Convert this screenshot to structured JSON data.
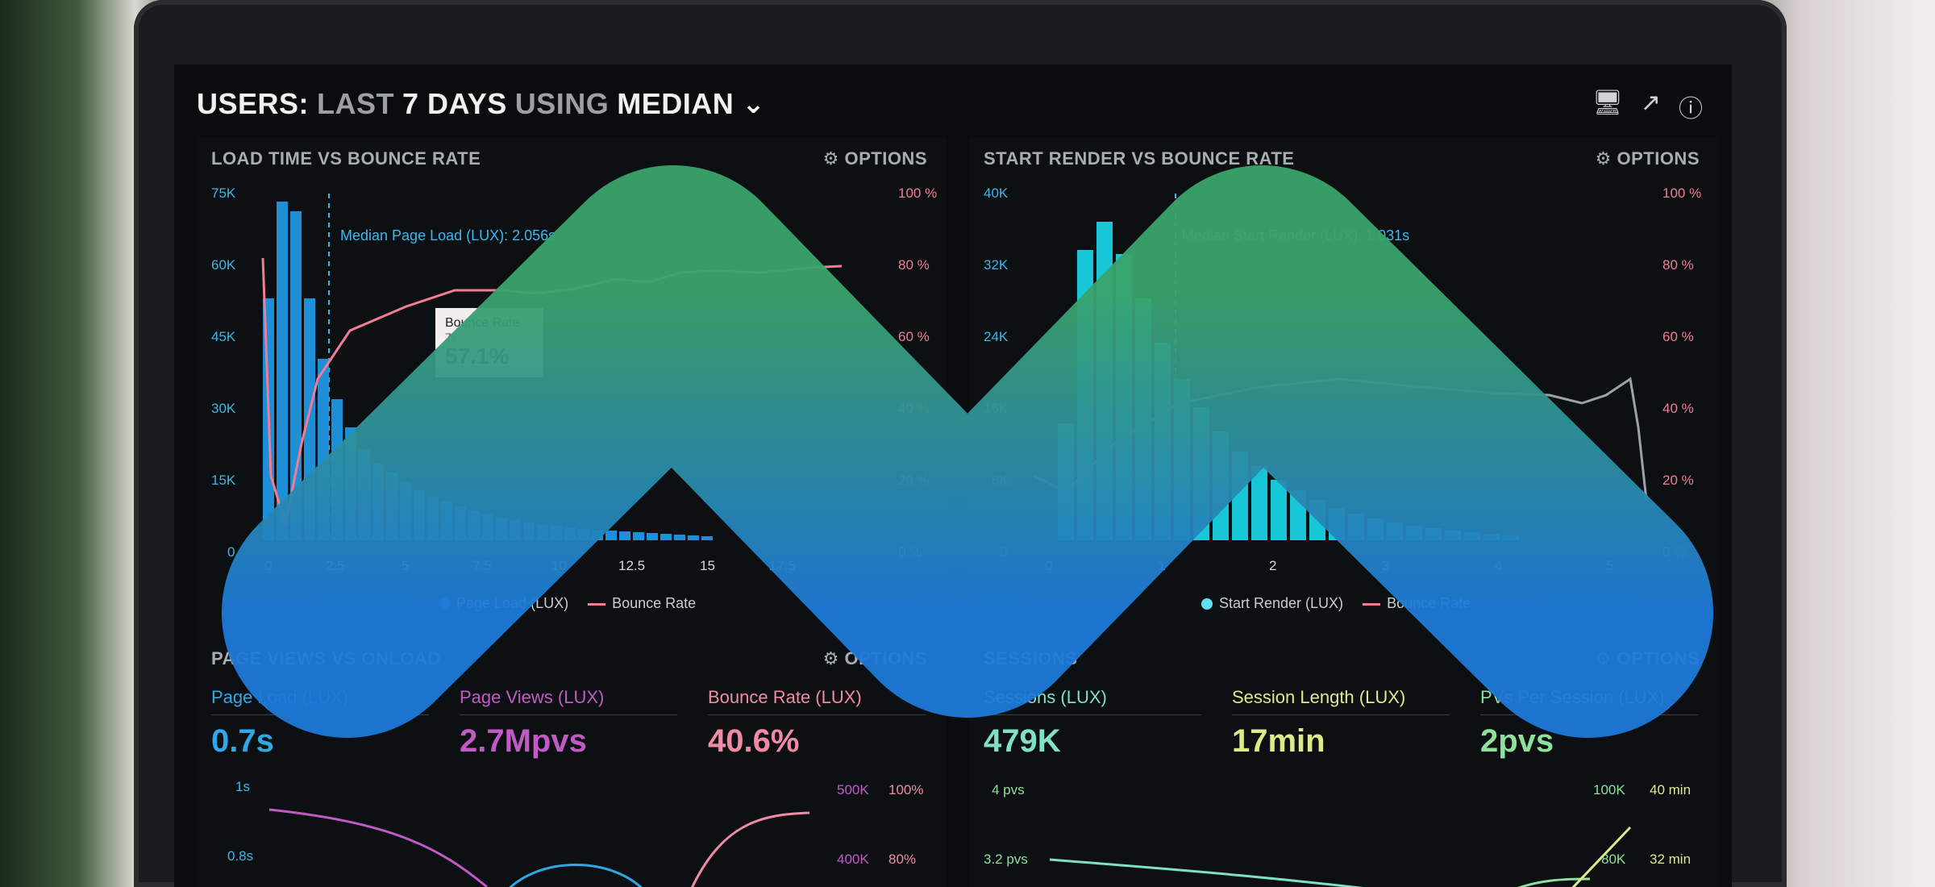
{
  "header": {
    "title_parts": [
      "USERS:",
      "LAST",
      "7 DAYS",
      "USING",
      "MEDIAN"
    ]
  },
  "top_icons": [
    "monitor-icon",
    "share-icon",
    "help-icon"
  ],
  "panel1": {
    "title": "LOAD TIME VS BOUNCE RATE",
    "options": "OPTIONS",
    "median_label": "Median Page Load (LUX): 2.056s",
    "tooltip": {
      "title": "Bounce Rate",
      "sub": "7s",
      "value": "57.1%"
    },
    "legend": [
      "Page Load (LUX)",
      "Bounce Rate"
    ],
    "y_left": [
      "75K",
      "60K",
      "45K",
      "30K",
      "15K",
      "0"
    ],
    "y_right": [
      "100 %",
      "80 %",
      "60 %",
      "40 %",
      "20 %",
      "0 %"
    ],
    "x_ticks": [
      "0",
      "2.5",
      "5",
      "7.5",
      "10",
      "12.5",
      "15",
      "17.5"
    ]
  },
  "panel2": {
    "title": "START RENDER VS BOUNCE RATE",
    "options": "OPTIONS",
    "median_label": "Median Start Render (LUX): 1.031s",
    "legend": [
      "Start Render (LUX)",
      "Bounce Rate"
    ],
    "y_left": [
      "40K",
      "32K",
      "24K",
      "16K",
      "8K",
      "0"
    ],
    "y_right": [
      "100 %",
      "80 %",
      "60 %",
      "40 %",
      "20 %",
      "0 %"
    ],
    "x_ticks": [
      "0",
      "1",
      "2",
      "3",
      "4",
      "5"
    ]
  },
  "panel3": {
    "title": "PAGE VIEWS VS ONLOAD",
    "options": "OPTIONS",
    "metrics": [
      {
        "label": "Page Load (LUX)",
        "value": "0.7s",
        "color": "#2fa8e6"
      },
      {
        "label": "Page Views (LUX)",
        "value": "2.7Mpvs",
        "color": "#c25ac6"
      },
      {
        "label": "Bounce Rate (LUX)",
        "value": "40.6%",
        "color": "#f28aa5"
      }
    ],
    "y_left": [
      "1s",
      "0.8s"
    ],
    "y_mid": [
      "500K",
      "400K"
    ],
    "y_right": [
      "100%",
      "80%"
    ]
  },
  "panel4": {
    "title": "SESSIONS",
    "options": "OPTIONS",
    "metrics": [
      {
        "label": "Sessions (LUX)",
        "value": "479K",
        "color": "#7fe0c4"
      },
      {
        "label": "Session Length (LUX)",
        "value": "17min",
        "color": "#d8ec8a"
      },
      {
        "label": "PVs Per Session (LUX)",
        "value": "2pvs",
        "color": "#8fe09a"
      }
    ],
    "y_left": [
      "4 pvs",
      "3.2 pvs"
    ],
    "y_mid": [
      "100K",
      "80K"
    ],
    "y_right": [
      "40 min",
      "32 min"
    ]
  },
  "colors": {
    "blue": "#2fa8e6",
    "pink": "#f27c95",
    "cyan": "#1fd0e0",
    "overlay_top": "#3aa36a",
    "overlay_bottom": "#1e79d8"
  }
}
